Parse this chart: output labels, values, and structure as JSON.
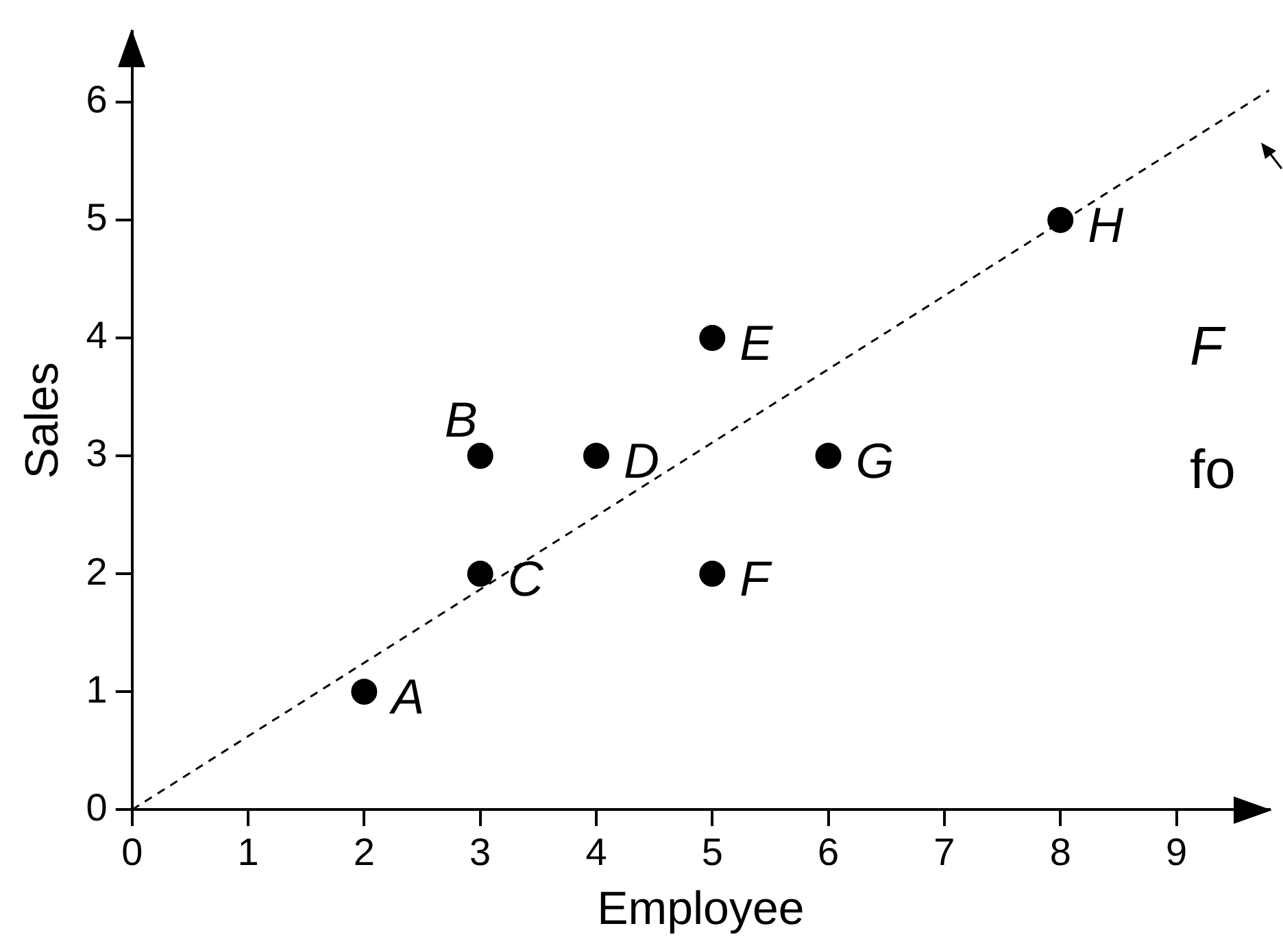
{
  "chart_data": {
    "type": "scatter",
    "xlabel": "Employee",
    "ylabel": "Sales",
    "xlim": [
      0,
      9.8
    ],
    "ylim": [
      0,
      6.6
    ],
    "xticks": [
      0,
      1,
      2,
      3,
      4,
      5,
      6,
      7,
      8,
      9
    ],
    "yticks": [
      0,
      1,
      2,
      3,
      4,
      5,
      6
    ],
    "grid": false,
    "legend": false,
    "marker": "circle",
    "series": [
      {
        "type": "scatter",
        "color": "#000000",
        "x": [
          2,
          3,
          3,
          4,
          5,
          5,
          6,
          8
        ],
        "values": [
          1,
          3,
          2,
          3,
          4,
          2,
          3,
          5
        ]
      },
      {
        "type": "line",
        "color": "#000000",
        "line_style": "dashed",
        "marker": "none",
        "x": [
          0,
          9.8
        ],
        "values": [
          0,
          6.1
        ]
      }
    ],
    "annotations": [
      {
        "text": "A",
        "x": 2,
        "y": 1
      },
      {
        "text": "B",
        "x": 3,
        "y": 3
      },
      {
        "text": "C",
        "x": 3,
        "y": 2
      },
      {
        "text": "D",
        "x": 4,
        "y": 3
      },
      {
        "text": "E",
        "x": 5,
        "y": 4
      },
      {
        "text": "F",
        "x": 5,
        "y": 2
      },
      {
        "text": "G",
        "x": 6,
        "y": 3
      },
      {
        "text": "H",
        "x": 8,
        "y": 5
      },
      "F",
      "fo"
    ]
  }
}
